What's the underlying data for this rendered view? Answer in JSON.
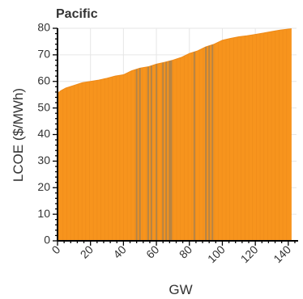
{
  "chart_data": {
    "type": "area",
    "title": "Pacific",
    "xlabel": "GW",
    "ylabel": "LCOE ($/MWh)",
    "xlim": [
      0,
      145
    ],
    "ylim": [
      0,
      80
    ],
    "x_ticks": [
      0,
      20,
      40,
      60,
      80,
      100,
      120,
      140
    ],
    "x_tick_labels": [
      "0",
      "20",
      "40",
      "60",
      "80",
      "100",
      "120",
      "140"
    ],
    "y_ticks": [
      0,
      10,
      20,
      30,
      40,
      50,
      60,
      70,
      80
    ],
    "y_tick_labels": [
      "0",
      "10",
      "20",
      "30",
      "40",
      "50",
      "60",
      "70",
      "80"
    ],
    "grid": true,
    "series": [
      {
        "color": "#F7941D",
        "x": [
          0,
          2,
          5,
          10,
          15,
          20,
          25,
          30,
          35,
          40,
          45,
          50,
          55,
          60,
          65,
          70,
          75,
          80,
          85,
          90,
          95,
          100,
          105,
          110,
          115,
          120,
          125,
          130,
          135,
          140,
          142
        ],
        "y": [
          55.5,
          56.5,
          57.5,
          58.5,
          59.5,
          60,
          60.5,
          61.2,
          62,
          62.5,
          64,
          65,
          65.5,
          66.5,
          67.2,
          68,
          69,
          70.5,
          71.5,
          73,
          74,
          75.5,
          76.2,
          76.8,
          77.2,
          77.7,
          78.2,
          78.8,
          79.3,
          79.7,
          79.8
        ]
      }
    ],
    "dark_bands_x": [
      48,
      50,
      55,
      57,
      60,
      64,
      66,
      68,
      69,
      83,
      90,
      92,
      94
    ]
  }
}
